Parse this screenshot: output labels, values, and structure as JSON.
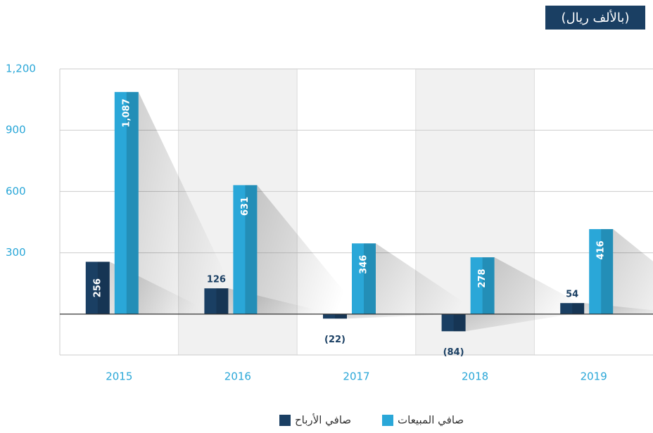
{
  "chart_data": {
    "type": "bar",
    "title": "(بالألف ريال)",
    "categories": [
      "2015",
      "2016",
      "2017",
      "2018",
      "2019"
    ],
    "series": [
      {
        "name": "صافي الأرباح",
        "color": "#1a3f63",
        "values": [
          256,
          126,
          -22,
          -84,
          54
        ],
        "value_labels": [
          "256",
          "126",
          "(22)",
          "(84)",
          "54"
        ]
      },
      {
        "name": "صافي المبيعات",
        "color": "#2aa7d8",
        "values": [
          1087,
          631,
          346,
          278,
          416
        ],
        "value_labels": [
          "1,087",
          "631",
          "346",
          "278",
          "416"
        ]
      }
    ],
    "ylim": [
      -200,
      1200
    ],
    "yticks": [
      {
        "value": 1200,
        "label": "1,200"
      },
      900,
      600,
      300
    ],
    "grid": true
  }
}
